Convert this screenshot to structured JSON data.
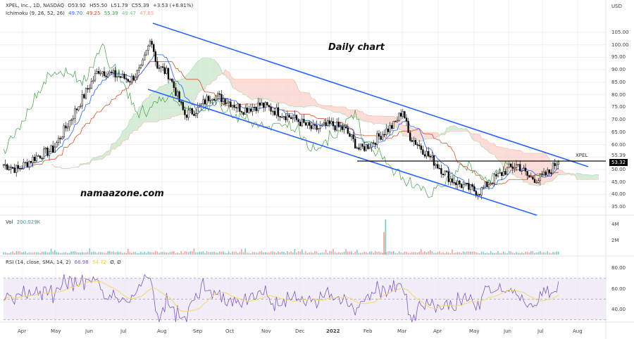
{
  "header": {
    "symbol_line": "XPEL, Inc., 1D, NASDAQ",
    "open": "O53.92",
    "high": "H55.50",
    "low": "L51.79",
    "close": "C55.39",
    "change": "+3.53 (+6.81%)",
    "ichimoku_label": "Ichimoku (9, 26, 52, 26)",
    "ichimoku_values": [
      "49.70",
      "49.25",
      "55.39",
      "49.47",
      "47.65"
    ],
    "ichimoku_colors": [
      "#2962ff",
      "#d4532a",
      "#43a047",
      "#7fc48a",
      "#f0a08a"
    ]
  },
  "volume": {
    "label": "Vol",
    "value": "200.029K",
    "axis_ticks": [
      "4M",
      "2M"
    ]
  },
  "rsi": {
    "label": "RSI (14, close, SMA, 14, 2)",
    "value": "66.98",
    "sma_value": "54.72",
    "extra": "Ø, Ø",
    "axis_ticks": [
      "80.00",
      "60.00",
      "40.00"
    ],
    "colors": {
      "rsi": "#7e57c2",
      "sma": "#f5d76e"
    }
  },
  "price_axis": {
    "currency": "USD",
    "ticks": [
      "105.00",
      "100.00",
      "95.00",
      "90.00",
      "85.00",
      "80.00",
      "75.00",
      "70.00",
      "65.00",
      "60.00",
      "55.00",
      "50.00",
      "45.00",
      "40.00",
      "35.00"
    ],
    "last_price_label": "55.39",
    "symbol_tag": "XPEL",
    "horizontal_line_label": "53.32"
  },
  "time_axis": {
    "ticks": [
      "Apr",
      "May",
      "Jun",
      "Jul",
      "Aug",
      "Sep",
      "Oct",
      "Nov",
      "Dec",
      "2022",
      "Feb",
      "Mar",
      "Apr",
      "May",
      "Jun",
      "Jul",
      "Aug"
    ]
  },
  "annotations": {
    "title": "Daily chart",
    "watermark": "namaazone.com"
  },
  "colors": {
    "channel": "#2962ff",
    "hline": "#000000",
    "candle": "#000000",
    "vol_up": "#80cbc4",
    "vol_down": "#f7a1a1",
    "cloud_green": "#c8e6c9",
    "cloud_red": "#fbd0c8"
  },
  "chart_data": {
    "type": "candlestick",
    "title": "Daily chart",
    "symbol": "XPEL",
    "exchange": "NASDAQ",
    "interval": "1D",
    "ylabel": "USD",
    "ylim": [
      33,
      107
    ],
    "x_ticks": [
      "Apr",
      "May",
      "Jun",
      "Jul",
      "Aug",
      "Sep",
      "Oct",
      "Nov",
      "Dec",
      "2022",
      "Feb",
      "Mar",
      "Apr",
      "May",
      "Jun",
      "Jul",
      "Aug"
    ],
    "ohlc_last": {
      "open": 53.92,
      "high": 55.5,
      "low": 51.79,
      "close": 55.39,
      "change": 3.53,
      "change_pct": 6.81
    },
    "approx_close_path": [
      {
        "month": "Mar-21",
        "price": 52
      },
      {
        "month": "Apr-21",
        "price": 55
      },
      {
        "month": "May-21",
        "price": 70
      },
      {
        "month": "Jun-21",
        "price": 90
      },
      {
        "month": "Jul-21",
        "price": 86
      },
      {
        "month": "Aug-21 (peak)",
        "price": 103
      },
      {
        "month": "Aug-21",
        "price": 88
      },
      {
        "month": "Sep-21",
        "price": 72
      },
      {
        "month": "Oct-21",
        "price": 80
      },
      {
        "month": "Nov-21",
        "price": 76
      },
      {
        "month": "Dec-21",
        "price": 68
      },
      {
        "month": "Jan-22",
        "price": 66
      },
      {
        "month": "Feb-22",
        "price": 60
      },
      {
        "month": "Mar-22 (local high)",
        "price": 74
      },
      {
        "month": "Apr-22",
        "price": 47
      },
      {
        "month": "May-22 (low)",
        "price": 40
      },
      {
        "month": "Jun-22",
        "price": 53
      },
      {
        "month": "Jul-22",
        "price": 48
      },
      {
        "month": "Jul-22 (last)",
        "price": 55.39
      }
    ],
    "trend_lines": [
      {
        "name": "upper channel",
        "from": {
          "x": "Aug-21",
          "price": 104
        },
        "to": {
          "x": "Aug-22",
          "price": 52
        }
      },
      {
        "name": "lower channel",
        "from": {
          "x": "Aug-21",
          "price": 80
        },
        "to": {
          "x": "Jul-22",
          "price": 34
        }
      },
      {
        "name": "horizontal resistance",
        "price": 53.32
      }
    ],
    "indicators": {
      "ichimoku": {
        "params": [
          9,
          26,
          52,
          26
        ],
        "values": [
          49.7,
          49.25,
          55.39,
          49.47,
          47.65
        ]
      },
      "volume": {
        "last": "200.029K",
        "max_spike": "~4.3M (Feb-22)"
      },
      "rsi": {
        "params": [
          14,
          "close",
          "SMA",
          14,
          2
        ],
        "value": 66.98,
        "sma": 54.72,
        "bands": [
          70,
          50,
          30
        ]
      }
    },
    "legend_position": "top-left",
    "grid": true
  }
}
